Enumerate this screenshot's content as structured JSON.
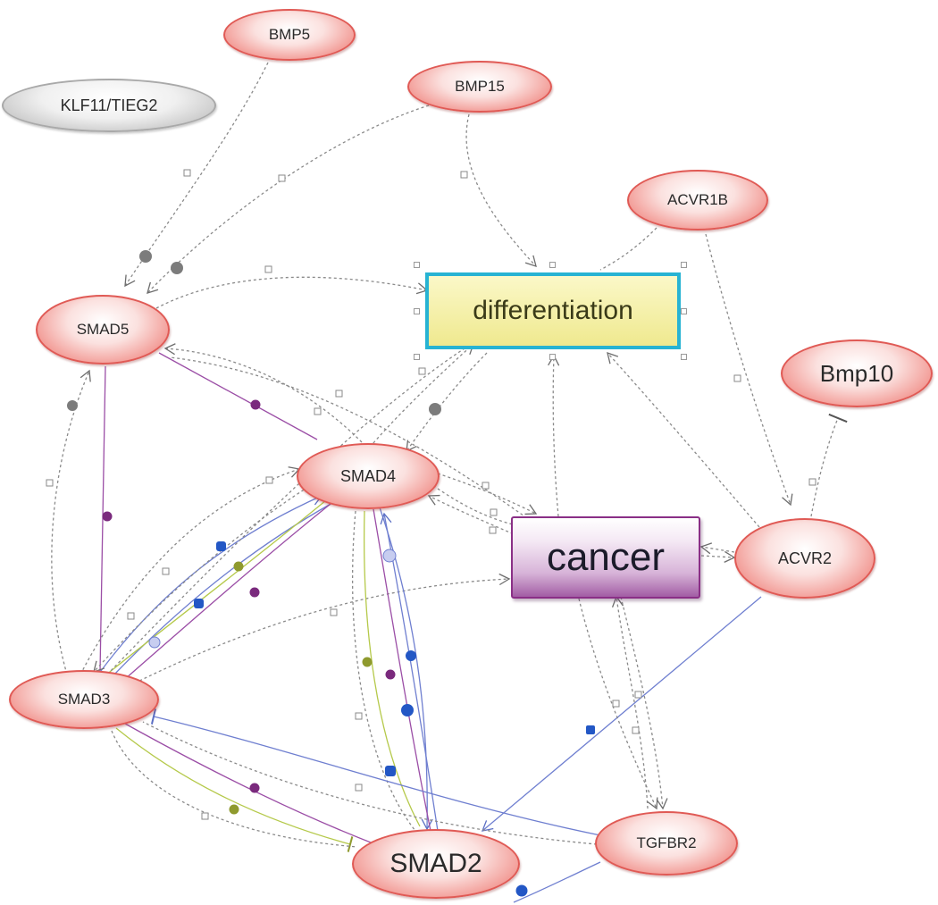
{
  "nodes": {
    "bmp5": "BMP5",
    "klf11": "KLF11/TIEG2",
    "bmp15": "BMP15",
    "acvr1b": "ACVR1B",
    "differentiation": "differentiation",
    "bmp10": "Bmp10",
    "smad5": "SMAD5",
    "smad4": "SMAD4",
    "cancer": "cancer",
    "acvr2": "ACVR2",
    "smad3": "SMAD3",
    "smad2": "SMAD2",
    "tgfbr2": "TGFBR2"
  },
  "edges": [
    {
      "from": "BMP5",
      "to": "SMAD5",
      "color": "#8a8a8a",
      "style": "dotted",
      "marker": "arrow"
    },
    {
      "from": "BMP15",
      "to": "SMAD5",
      "color": "#8a8a8a",
      "style": "dotted",
      "marker": "arrow"
    },
    {
      "from": "BMP15",
      "to": "differentiation",
      "color": "#8a8a8a",
      "style": "dotted",
      "marker": "arrow"
    },
    {
      "from": "ACVR1B",
      "to": "differentiation",
      "color": "#8a8a8a",
      "style": "dotted",
      "marker": "none"
    },
    {
      "from": "ACVR1B",
      "to": "ACVR2",
      "color": "#8a8a8a",
      "style": "dotted",
      "marker": "arrow"
    },
    {
      "from": "Bmp10",
      "to": "ACVR2",
      "color": "#8a8a8a",
      "style": "dotted",
      "marker": "inhibit"
    },
    {
      "from": "SMAD5",
      "to": "differentiation",
      "color": "#8a8a8a",
      "style": "dotted",
      "marker": "arrow"
    },
    {
      "from": "SMAD5",
      "to": "SMAD4",
      "color": "#9b4ea6",
      "style": "solid",
      "marker": "none"
    },
    {
      "from": "SMAD5",
      "to": "SMAD3",
      "color": "#9b4ea6",
      "style": "solid",
      "marker": "none"
    },
    {
      "from": "SMAD4",
      "to": "SMAD5",
      "color": "#8a8a8a",
      "style": "dotted",
      "marker": "arrow"
    },
    {
      "from": "SMAD4",
      "to": "differentiation",
      "color": "#8a8a8a",
      "style": "dotted",
      "marker": "arrow"
    },
    {
      "from": "differentiation",
      "to": "SMAD4",
      "color": "#8a8a8a",
      "style": "dotted",
      "marker": "arrow"
    },
    {
      "from": "SMAD4",
      "to": "cancer",
      "color": "#8a8a8a",
      "style": "dotted",
      "marker": "arrow"
    },
    {
      "from": "cancer",
      "to": "SMAD4",
      "color": "#8a8a8a",
      "style": "dotted",
      "marker": "arrow"
    },
    {
      "from": "cancer",
      "to": "differentiation",
      "color": "#8a8a8a",
      "style": "dotted",
      "marker": "arrow"
    },
    {
      "from": "ACVR2",
      "to": "differentiation",
      "color": "#8a8a8a",
      "style": "dotted",
      "marker": "arrow"
    },
    {
      "from": "ACVR2",
      "to": "cancer",
      "color": "#8a8a8a",
      "style": "dotted",
      "marker": "arrow"
    },
    {
      "from": "ACVR2",
      "to": "SMAD2",
      "color": "#6f7fd0",
      "style": "solid",
      "marker": "arrow"
    },
    {
      "from": "SMAD3",
      "to": "SMAD5",
      "color": "#8a8a8a",
      "style": "dotted",
      "marker": "arrow"
    },
    {
      "from": "SMAD3",
      "to": "SMAD4",
      "color": "#6f7fd0",
      "style": "solid",
      "marker": "arrow"
    },
    {
      "from": "SMAD4",
      "to": "SMAD3",
      "color": "#9b4ea6",
      "style": "solid",
      "marker": "none"
    },
    {
      "from": "SMAD3",
      "to": "SMAD4",
      "color": "#b5c94a",
      "style": "solid",
      "marker": "none"
    },
    {
      "from": "SMAD3",
      "to": "cancer",
      "color": "#8a8a8a",
      "style": "dotted",
      "marker": "arrow"
    },
    {
      "from": "SMAD3",
      "to": "differentiation",
      "color": "#8a8a8a",
      "style": "dotted",
      "marker": "arrow"
    },
    {
      "from": "SMAD4",
      "to": "SMAD2",
      "color": "#6f7fd0",
      "style": "solid",
      "marker": "arrow"
    },
    {
      "from": "SMAD4",
      "to": "SMAD2",
      "color": "#9b4ea6",
      "style": "solid",
      "marker": "none"
    },
    {
      "from": "SMAD4",
      "to": "SMAD2",
      "color": "#b5c94a",
      "style": "solid",
      "marker": "none"
    },
    {
      "from": "SMAD2",
      "to": "SMAD4",
      "color": "#6f7fd0",
      "style": "solid",
      "marker": "arrow"
    },
    {
      "from": "SMAD3",
      "to": "SMAD2",
      "color": "#9b4ea6",
      "style": "solid",
      "marker": "none"
    },
    {
      "from": "SMAD3",
      "to": "SMAD2",
      "color": "#b5c94a",
      "style": "solid",
      "marker": "inhibit"
    },
    {
      "from": "SMAD3",
      "to": "SMAD2",
      "color": "#8a8a8a",
      "style": "dotted",
      "marker": "none"
    },
    {
      "from": "TGFBR2",
      "to": "SMAD3",
      "color": "#6f7fd0",
      "style": "solid",
      "marker": "inhibit"
    },
    {
      "from": "TGFBR2",
      "to": "SMAD3",
      "color": "#8a8a8a",
      "style": "dotted",
      "marker": "none"
    },
    {
      "from": "TGFBR2",
      "to": "cancer",
      "color": "#8a8a8a",
      "style": "dotted",
      "marker": "arrow"
    },
    {
      "from": "cancer",
      "to": "TGFBR2",
      "color": "#8a8a8a",
      "style": "dotted",
      "marker": "arrow"
    },
    {
      "from": "TGFBR2",
      "to": "SMAD2",
      "color": "#6f7fd0",
      "style": "solid",
      "marker": "none"
    }
  ],
  "colors": {
    "gene_fill": "#f3a19c",
    "gene_border": "#e05a55",
    "isolated_fill": "#d0d0d0",
    "process_fill": "#efe98f",
    "selection_border": "#27b3d3",
    "disease_fill": "#c597c7",
    "disease_border": "#8a2f86",
    "edge_gray": "#8a8a8a",
    "edge_purple": "#9b4ea6",
    "edge_blue": "#6f7fd0",
    "edge_olive": "#b5c94a",
    "dot_blue": "#2357c5",
    "dot_purple": "#7a2a7d",
    "dot_olive": "#8f9a2e",
    "dot_gray": "#7c7c7c"
  }
}
